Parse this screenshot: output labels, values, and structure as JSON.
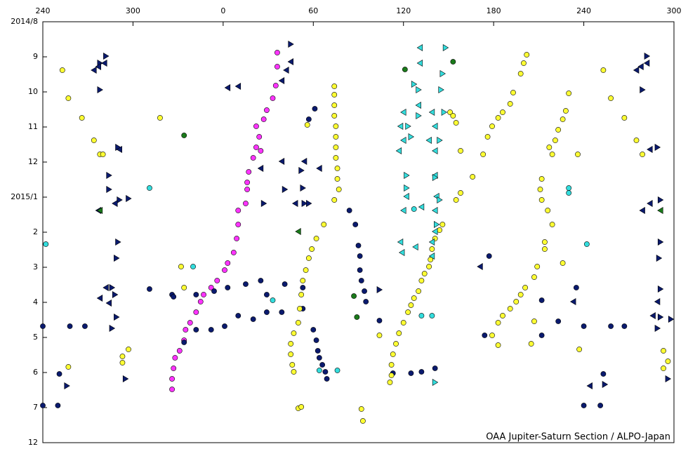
{
  "chart_data": {
    "type": "scatter",
    "footer": "OAA Jupiter-Saturn Section / ALPO-Japan",
    "xlim": [
      240,
      660
    ],
    "xticks": [
      240,
      300,
      {
        "value": 360,
        "label": "0"
      },
      {
        "value": 420,
        "label": "60"
      },
      {
        "value": 480,
        "label": "120"
      },
      {
        "value": 540,
        "label": "180"
      },
      {
        "value": 600,
        "label": "240"
      },
      {
        "value": 660,
        "label": "300"
      }
    ],
    "ylim": [
      0,
      12
    ],
    "y_inverted": true,
    "yticks": [
      {
        "value": 0,
        "label": "2014/8"
      },
      {
        "value": 1,
        "label": "9"
      },
      {
        "value": 2,
        "label": "10"
      },
      {
        "value": 3,
        "label": "11"
      },
      {
        "value": 4,
        "label": "12"
      },
      {
        "value": 5,
        "label": "2015/1"
      },
      {
        "value": 6,
        "label": "2"
      },
      {
        "value": 7,
        "label": "3"
      },
      {
        "value": 8,
        "label": "4"
      },
      {
        "value": 9,
        "label": "5"
      },
      {
        "value": 10,
        "label": "6"
      },
      {
        "value": 11,
        "label": "7"
      },
      12
    ],
    "series": [
      {
        "marker": "circle",
        "color": "#ff33ff",
        "x": [
          396,
          396,
          395,
          393,
          389,
          387,
          382,
          384,
          382,
          385,
          380,
          377,
          376,
          376,
          375,
          370,
          370,
          369,
          367,
          363,
          361,
          356,
          352,
          347,
          345,
          342,
          338,
          335,
          334,
          331,
          328,
          327,
          326,
          326
        ],
        "y": [
          0.88,
          1.28,
          1.82,
          2.18,
          2.52,
          2.78,
          2.98,
          3.28,
          3.58,
          3.68,
          3.88,
          4.28,
          4.58,
          4.78,
          5.18,
          5.38,
          5.78,
          6.18,
          6.58,
          6.88,
          7.08,
          7.38,
          7.58,
          7.78,
          7.98,
          8.28,
          8.58,
          8.78,
          9.08,
          9.38,
          9.58,
          9.88,
          10.18,
          10.48
        ]
      },
      {
        "marker": "circle",
        "color": "#0a1a6e",
        "x": [
          421,
          417,
          444,
          448,
          450,
          451,
          451,
          452,
          454,
          455,
          326,
          342,
          354,
          363,
          375,
          385,
          389,
          401,
          413,
          342,
          352,
          361,
          370,
          380,
          389,
          399,
          413,
          420,
          422,
          423,
          424,
          426,
          428,
          429,
          240,
          258,
          268,
          251,
          240,
          250,
          311,
          327,
          334,
          537,
          534,
          572,
          572,
          583,
          595,
          600,
          600,
          611,
          613,
          618,
          627,
          464,
          473,
          485,
          492,
          501
        ],
        "y": [
          2.48,
          2.78,
          5.38,
          5.78,
          6.38,
          6.68,
          7.08,
          7.38,
          7.68,
          7.98,
          7.78,
          7.78,
          7.68,
          7.58,
          7.48,
          7.38,
          7.78,
          7.48,
          7.58,
          8.78,
          8.78,
          8.68,
          8.38,
          8.48,
          8.28,
          8.28,
          8.18,
          8.78,
          9.08,
          9.38,
          9.58,
          9.78,
          9.98,
          10.18,
          8.68,
          8.68,
          8.68,
          10.04,
          10.94,
          10.94,
          7.62,
          7.84,
          9.14,
          6.68,
          8.94,
          7.94,
          8.94,
          8.54,
          7.58,
          8.68,
          10.94,
          10.94,
          10.04,
          8.68,
          8.68,
          8.52,
          10.02,
          10.02,
          9.98,
          9.88
        ]
      },
      {
        "marker": "circle",
        "color": "#ffff33",
        "x": [
          253,
          257,
          266,
          274,
          278,
          280,
          297,
          293,
          293,
          257,
          318,
          332,
          334,
          434,
          434,
          434,
          434,
          435,
          435,
          435,
          435,
          436,
          436,
          437,
          434,
          427,
          422,
          419,
          417,
          415,
          413,
          412,
          411,
          410,
          407,
          405,
          405,
          406,
          407,
          410,
          412,
          416,
          452,
          453,
          464,
          471,
          472,
          472,
          473,
          475,
          477,
          480,
          483,
          485,
          487,
          490,
          492,
          494,
          497,
          498,
          499,
          501,
          504,
          506,
          511,
          513,
          515,
          518,
          515,
          518,
          526,
          533,
          536,
          539,
          543,
          546,
          551,
          553,
          558,
          560,
          562,
          590,
          588,
          586,
          583,
          581,
          577,
          579,
          572,
          571,
          572,
          576,
          579,
          574,
          574,
          569,
          567,
          561,
          558,
          555,
          551,
          546,
          543,
          539,
          543,
          565,
          567,
          586,
          596,
          597,
          613,
          618,
          627,
          635,
          639,
          653,
          656,
          653
        ],
        "y": [
          1.38,
          2.18,
          2.74,
          3.38,
          3.78,
          3.78,
          9.34,
          9.54,
          9.72,
          9.84,
          2.74,
          6.98,
          7.58,
          1.84,
          2.08,
          2.38,
          2.68,
          2.98,
          3.28,
          3.58,
          3.88,
          4.18,
          4.48,
          4.78,
          5.08,
          5.78,
          6.18,
          6.48,
          6.74,
          7.08,
          7.38,
          7.78,
          8.18,
          8.58,
          8.88,
          9.18,
          9.48,
          9.78,
          9.98,
          11.02,
          10.98,
          2.94,
          11.04,
          11.38,
          8.94,
          10.28,
          10.08,
          9.78,
          9.48,
          9.18,
          8.88,
          8.58,
          8.28,
          8.08,
          7.88,
          7.68,
          7.38,
          7.18,
          6.98,
          6.78,
          6.48,
          6.18,
          5.94,
          5.78,
          2.58,
          2.68,
          2.88,
          3.68,
          5.08,
          4.88,
          4.42,
          3.78,
          3.28,
          2.98,
          2.74,
          2.58,
          2.34,
          2.02,
          1.48,
          1.18,
          0.94,
          2.04,
          2.54,
          2.78,
          3.08,
          3.38,
          3.58,
          3.78,
          4.48,
          4.78,
          5.08,
          5.38,
          5.78,
          6.28,
          6.48,
          6.98,
          7.28,
          7.58,
          7.78,
          7.98,
          8.18,
          8.38,
          8.58,
          8.94,
          9.22,
          9.18,
          8.54,
          6.88,
          3.78,
          9.34,
          1.38,
          2.18,
          2.74,
          3.38,
          3.78,
          9.38,
          9.68,
          9.88
        ]
      },
      {
        "marker": "circle",
        "color": "#33dddd",
        "x": [
          242,
          311,
          340,
          393,
          424,
          436,
          590,
          590,
          602,
          487,
          492,
          499
        ],
        "y": [
          6.34,
          4.74,
          6.98,
          7.94,
          9.94,
          9.94,
          4.74,
          4.88,
          6.34,
          5.34,
          8.38,
          8.38
        ]
      },
      {
        "marker": "circle",
        "color": "#1a7a1a",
        "x": [
          334,
          481,
          513,
          447,
          449
        ],
        "y": [
          3.24,
          1.36,
          1.14,
          7.82,
          8.42
        ]
      },
      {
        "marker": "triangle-right",
        "color": "#0a1a6e",
        "x": [
          282,
          278,
          278,
          290,
          284,
          284,
          297,
          290,
          289,
          286,
          288,
          289,
          286,
          295,
          256,
          405,
          412,
          413,
          414,
          417,
          464,
          642,
          639,
          649,
          651,
          651,
          650,
          651,
          651,
          649,
          658,
          656,
          614,
          387,
          401,
          291
        ],
        "y": [
          0.98,
          1.18,
          1.94,
          3.58,
          4.38,
          4.78,
          5.04,
          6.28,
          6.74,
          7.58,
          7.78,
          8.42,
          8.74,
          10.18,
          10.38,
          0.64,
          4.24,
          4.74,
          5.18,
          5.18,
          7.64,
          0.98,
          1.94,
          3.58,
          5.08,
          6.28,
          6.74,
          7.62,
          8.42,
          8.74,
          8.48,
          10.18,
          10.34,
          5.18,
          4.78,
          5.08
        ]
      },
      {
        "marker": "triangle-left",
        "color": "#0a1a6e",
        "x": [
          274,
          277,
          281,
          277,
          291,
          288,
          284,
          282,
          278,
          363,
          370,
          399,
          402,
          405,
          399,
          414,
          408,
          531,
          635,
          638,
          642,
          644,
          639,
          644,
          649,
          646,
          593,
          604,
          385,
          424
        ],
        "y": [
          1.38,
          1.28,
          1.18,
          5.38,
          3.64,
          5.18,
          8.02,
          7.58,
          7.88,
          1.88,
          1.84,
          1.68,
          1.38,
          1.14,
          3.98,
          3.98,
          5.18,
          6.98,
          1.38,
          1.28,
          1.18,
          3.64,
          5.38,
          5.18,
          7.98,
          8.38,
          7.98,
          10.38,
          4.18,
          4.18
        ]
      },
      {
        "marker": "triangle-left",
        "color": "#33dddd",
        "x": [
          480,
          478,
          480,
          477,
          482,
          480,
          478,
          479,
          491,
          491,
          490,
          499,
          501,
          497,
          501,
          501,
          502,
          501,
          499,
          499,
          488,
          501,
          492
        ],
        "y": [
          2.58,
          2.98,
          3.38,
          3.68,
          4.98,
          5.38,
          6.28,
          6.58,
          0.74,
          1.18,
          2.38,
          2.58,
          2.98,
          3.38,
          3.68,
          4.38,
          4.98,
          5.38,
          6.28,
          6.68,
          6.42,
          5.98,
          5.28
        ]
      },
      {
        "marker": "triangle-right",
        "color": "#33dddd",
        "x": [
          508,
          506,
          505,
          507,
          504,
          501,
          504,
          502,
          487,
          483,
          482,
          482,
          490,
          501,
          490,
          485
        ],
        "y": [
          0.74,
          1.48,
          1.94,
          2.58,
          3.38,
          4.44,
          5.08,
          5.78,
          1.78,
          2.98,
          4.38,
          4.74,
          2.68,
          10.28,
          1.94,
          3.28
        ]
      },
      {
        "marker": "triangle-left",
        "color": "#1a7a1a",
        "x": [
          278,
          651,
          410
        ],
        "y": [
          5.38,
          5.38,
          5.98
        ]
      }
    ]
  }
}
